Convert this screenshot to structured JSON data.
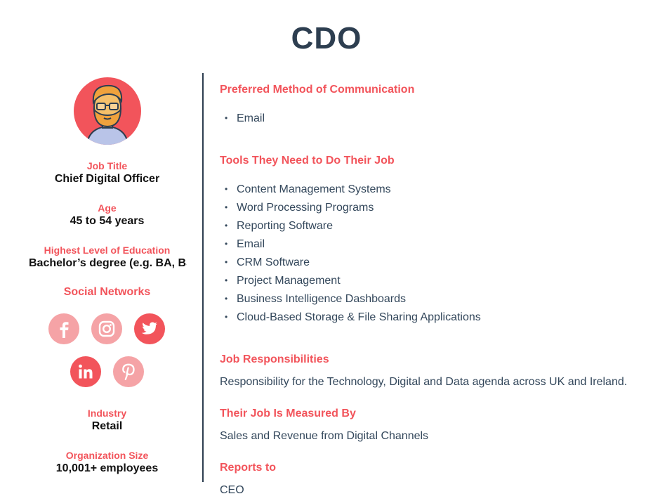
{
  "title": "CDO",
  "profile": {
    "job_title_label": "Job Title",
    "job_title": "Chief Digital Officer",
    "age_label": "Age",
    "age": "45 to 54 years",
    "education_label": "Highest Level of Education",
    "education": "Bachelor’s degree (e.g. BA, BS)",
    "social_label": "Social Networks",
    "social_icons": [
      "facebook-icon",
      "instagram-icon",
      "twitter-icon",
      "linkedin-icon",
      "pinterest-icon"
    ],
    "industry_label": "Industry",
    "industry": "Retail",
    "org_size_label": "Organization Size",
    "org_size": "10,001+ employees"
  },
  "sections": {
    "communication": {
      "heading": "Preferred Method of Communication",
      "items": [
        "Email"
      ]
    },
    "tools": {
      "heading": "Tools They Need to Do Their Job",
      "items": [
        "Content Management Systems",
        "Word Processing Programs",
        "Reporting Software",
        "Email",
        "CRM Software",
        "Project Management",
        "Business Intelligence Dashboards",
        "Cloud-Based Storage & File Sharing Applications"
      ]
    },
    "responsibilities": {
      "heading": "Job Responsibilities",
      "text": "Responsibility for the Technology, Digital and Data agenda across UK and Ireland."
    },
    "measured": {
      "heading": "Their Job Is Measured By",
      "text": "Sales and Revenue from Digital Channels"
    },
    "reports": {
      "heading": "Reports to",
      "text": "CEO"
    }
  },
  "colors": {
    "accent": "#f2545b",
    "accent_light": "#f5a3a6",
    "heading_dark": "#2d3e50",
    "body_text": "#33475b"
  }
}
